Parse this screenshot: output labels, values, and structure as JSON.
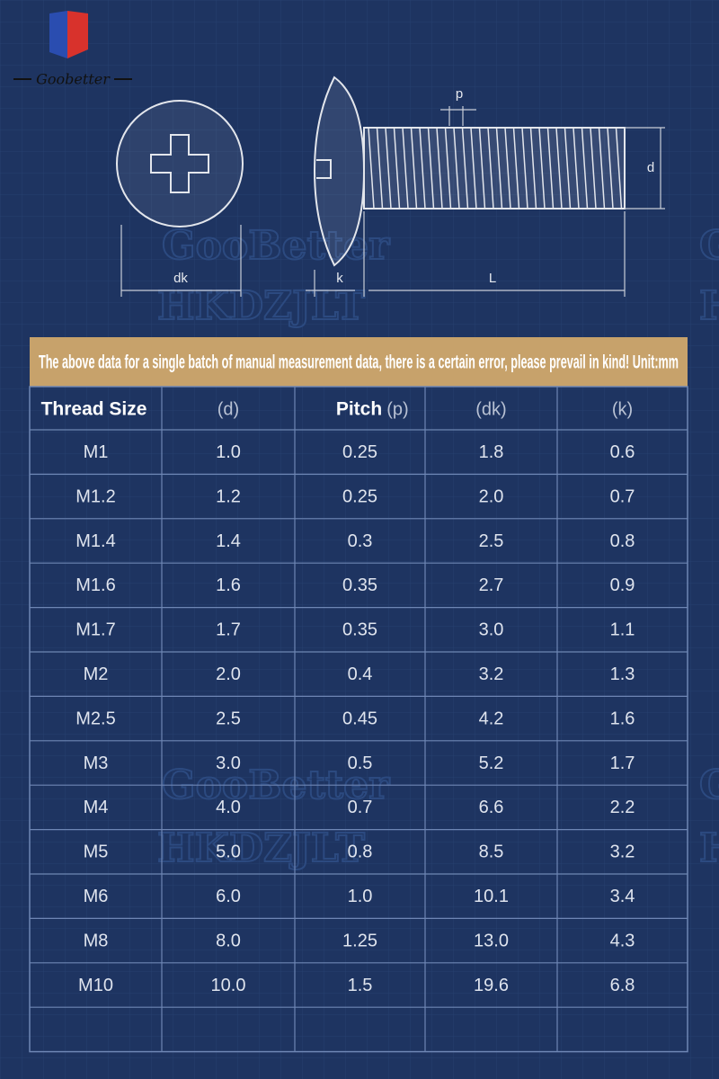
{
  "logo": {
    "text": "Goobetter"
  },
  "diagram": {
    "labels": {
      "p": "p",
      "d": "d",
      "dk": "dk",
      "k": "k",
      "L": "L"
    }
  },
  "watermark": {
    "brand": "GooBetter",
    "code": "HKDZJLT"
  },
  "banner": "The above data for a single batch of manual measurement data, there is a certain error, please prevail in kind! Unit:mm",
  "table": {
    "header": [
      "Thread Size",
      "(d)",
      "Pitch",
      "(p)",
      "(dk)",
      "(k)"
    ],
    "rows": [
      [
        "M1",
        "1.0",
        "0.25",
        "1.8",
        "0.6"
      ],
      [
        "M1.2",
        "1.2",
        "0.25",
        "2.0",
        "0.7"
      ],
      [
        "M1.4",
        "1.4",
        "0.3",
        "2.5",
        "0.8"
      ],
      [
        "M1.6",
        "1.6",
        "0.35",
        "2.7",
        "0.9"
      ],
      [
        "M1.7",
        "1.7",
        "0.35",
        "3.0",
        "1.1"
      ],
      [
        "M2",
        "2.0",
        "0.4",
        "3.2",
        "1.3"
      ],
      [
        "M2.5",
        "2.5",
        "0.45",
        "4.2",
        "1.6"
      ],
      [
        "M3",
        "3.0",
        "0.5",
        "5.2",
        "1.7"
      ],
      [
        "M4",
        "4.0",
        "0.7",
        "6.6",
        "2.2"
      ],
      [
        "M5",
        "5.0",
        "0.8",
        "8.5",
        "3.2"
      ],
      [
        "M6",
        "6.0",
        "1.0",
        "10.1",
        "3.4"
      ],
      [
        "M8",
        "8.0",
        "1.25",
        "13.0",
        "4.3"
      ],
      [
        "M10",
        "10.0",
        "1.5",
        "19.6",
        "6.8"
      ]
    ]
  }
}
